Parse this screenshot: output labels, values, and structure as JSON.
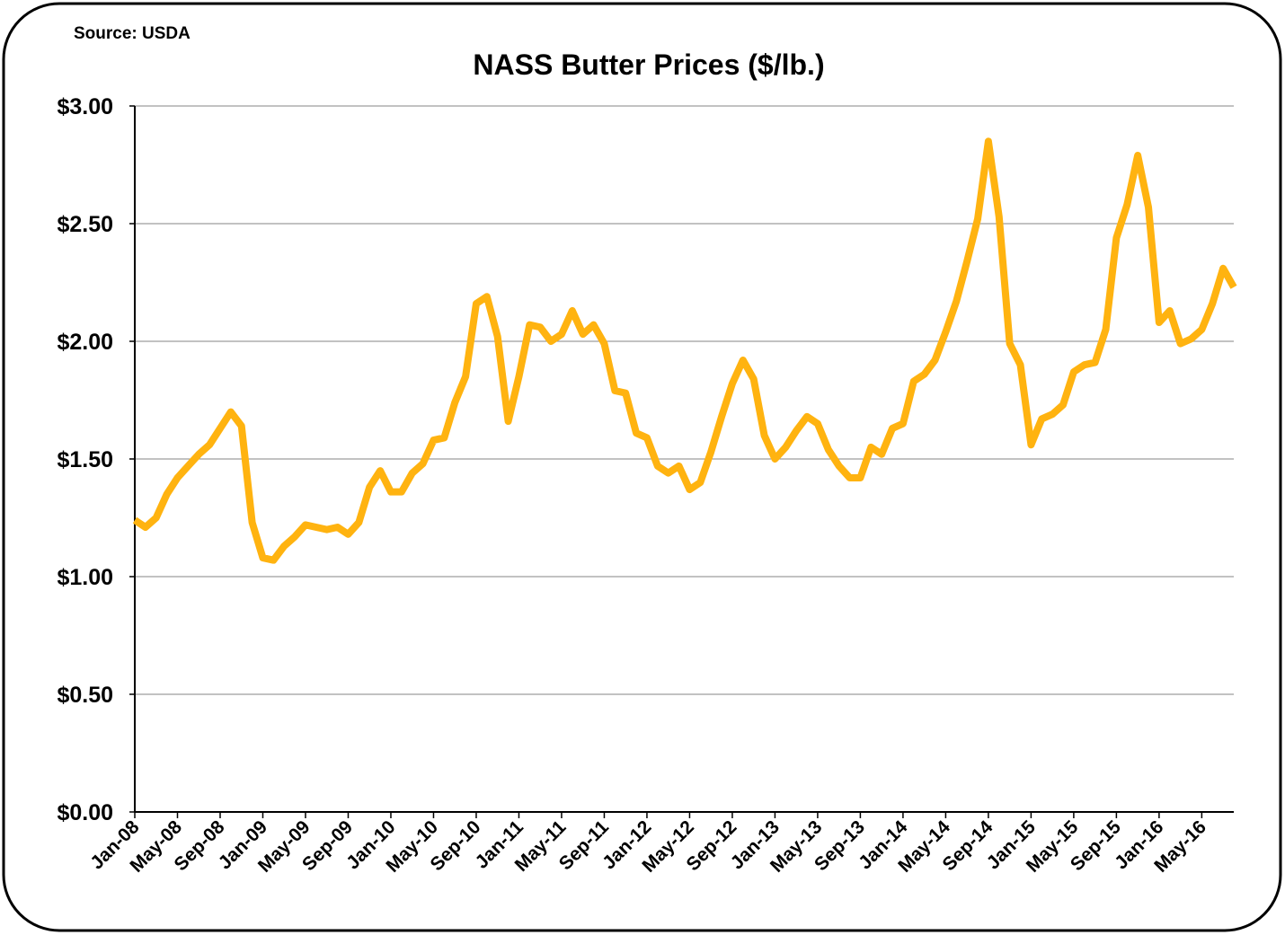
{
  "chart_data": {
    "type": "line",
    "title": "NASS Butter Prices ($/lb.)",
    "source": "Source: USDA",
    "color": "#ffb310",
    "grid": true,
    "categories": [
      "Jan-08",
      null,
      null,
      null,
      "May-08",
      null,
      null,
      null,
      "Sep-08",
      null,
      null,
      null,
      "Jan-09",
      null,
      null,
      null,
      "May-09",
      null,
      null,
      null,
      "Sep-09",
      null,
      null,
      null,
      "Jan-10",
      null,
      null,
      null,
      "May-10",
      null,
      null,
      null,
      "Sep-10",
      null,
      null,
      null,
      "Jan-11",
      null,
      null,
      null,
      "May-11",
      null,
      null,
      null,
      "Sep-11",
      null,
      null,
      null,
      "Jan-12",
      null,
      null,
      null,
      "May-12",
      null,
      null,
      null,
      "Sep-12",
      null,
      null,
      null,
      "Jan-13",
      null,
      null,
      null,
      "May-13",
      null,
      null,
      null,
      "Sep-13",
      null,
      null,
      null,
      "Jan-14",
      null,
      null,
      null,
      "May-14",
      null,
      null,
      null,
      "Sep-14",
      null,
      null,
      null,
      "Jan-15",
      null,
      null,
      null,
      "May-15",
      null,
      null,
      null,
      "Sep-15",
      null,
      null,
      null,
      "Jan-16",
      null,
      null,
      null,
      "May-16",
      null,
      null,
      null
    ],
    "values": [
      1.24,
      1.21,
      1.25,
      1.35,
      1.42,
      1.47,
      1.52,
      1.56,
      1.63,
      1.7,
      1.64,
      1.23,
      1.08,
      1.07,
      1.13,
      1.17,
      1.22,
      1.21,
      1.2,
      1.21,
      1.18,
      1.23,
      1.38,
      1.45,
      1.36,
      1.36,
      1.44,
      1.48,
      1.58,
      1.59,
      1.74,
      1.85,
      2.16,
      2.19,
      2.02,
      1.66,
      1.85,
      2.07,
      2.06,
      2.0,
      2.03,
      2.13,
      2.03,
      2.07,
      1.99,
      1.79,
      1.78,
      1.61,
      1.59,
      1.47,
      1.44,
      1.47,
      1.37,
      1.4,
      1.53,
      1.68,
      1.82,
      1.92,
      1.84,
      1.6,
      1.5,
      1.55,
      1.62,
      1.68,
      1.65,
      1.54,
      1.47,
      1.42,
      1.42,
      1.55,
      1.52,
      1.63,
      1.65,
      1.83,
      1.86,
      1.92,
      2.04,
      2.17,
      2.34,
      2.52,
      2.85,
      2.53,
      1.99,
      1.9,
      1.56,
      1.67,
      1.69,
      1.73,
      1.87,
      1.9,
      1.91,
      2.05,
      2.44,
      2.58,
      2.79,
      2.57,
      2.08,
      2.13,
      1.99,
      2.01,
      2.05,
      2.16,
      2.31,
      2.23
    ],
    "ylim": [
      0,
      3
    ],
    "yticks": [
      {
        "value": 0,
        "label": "$0.00"
      },
      {
        "value": 0.5,
        "label": "$0.50"
      },
      {
        "value": 1,
        "label": "$1.00"
      },
      {
        "value": 1.5,
        "label": "$1.50"
      },
      {
        "value": 2,
        "label": "$2.00"
      },
      {
        "value": 2.5,
        "label": "$2.50"
      },
      {
        "value": 3,
        "label": "$3.00"
      }
    ]
  }
}
